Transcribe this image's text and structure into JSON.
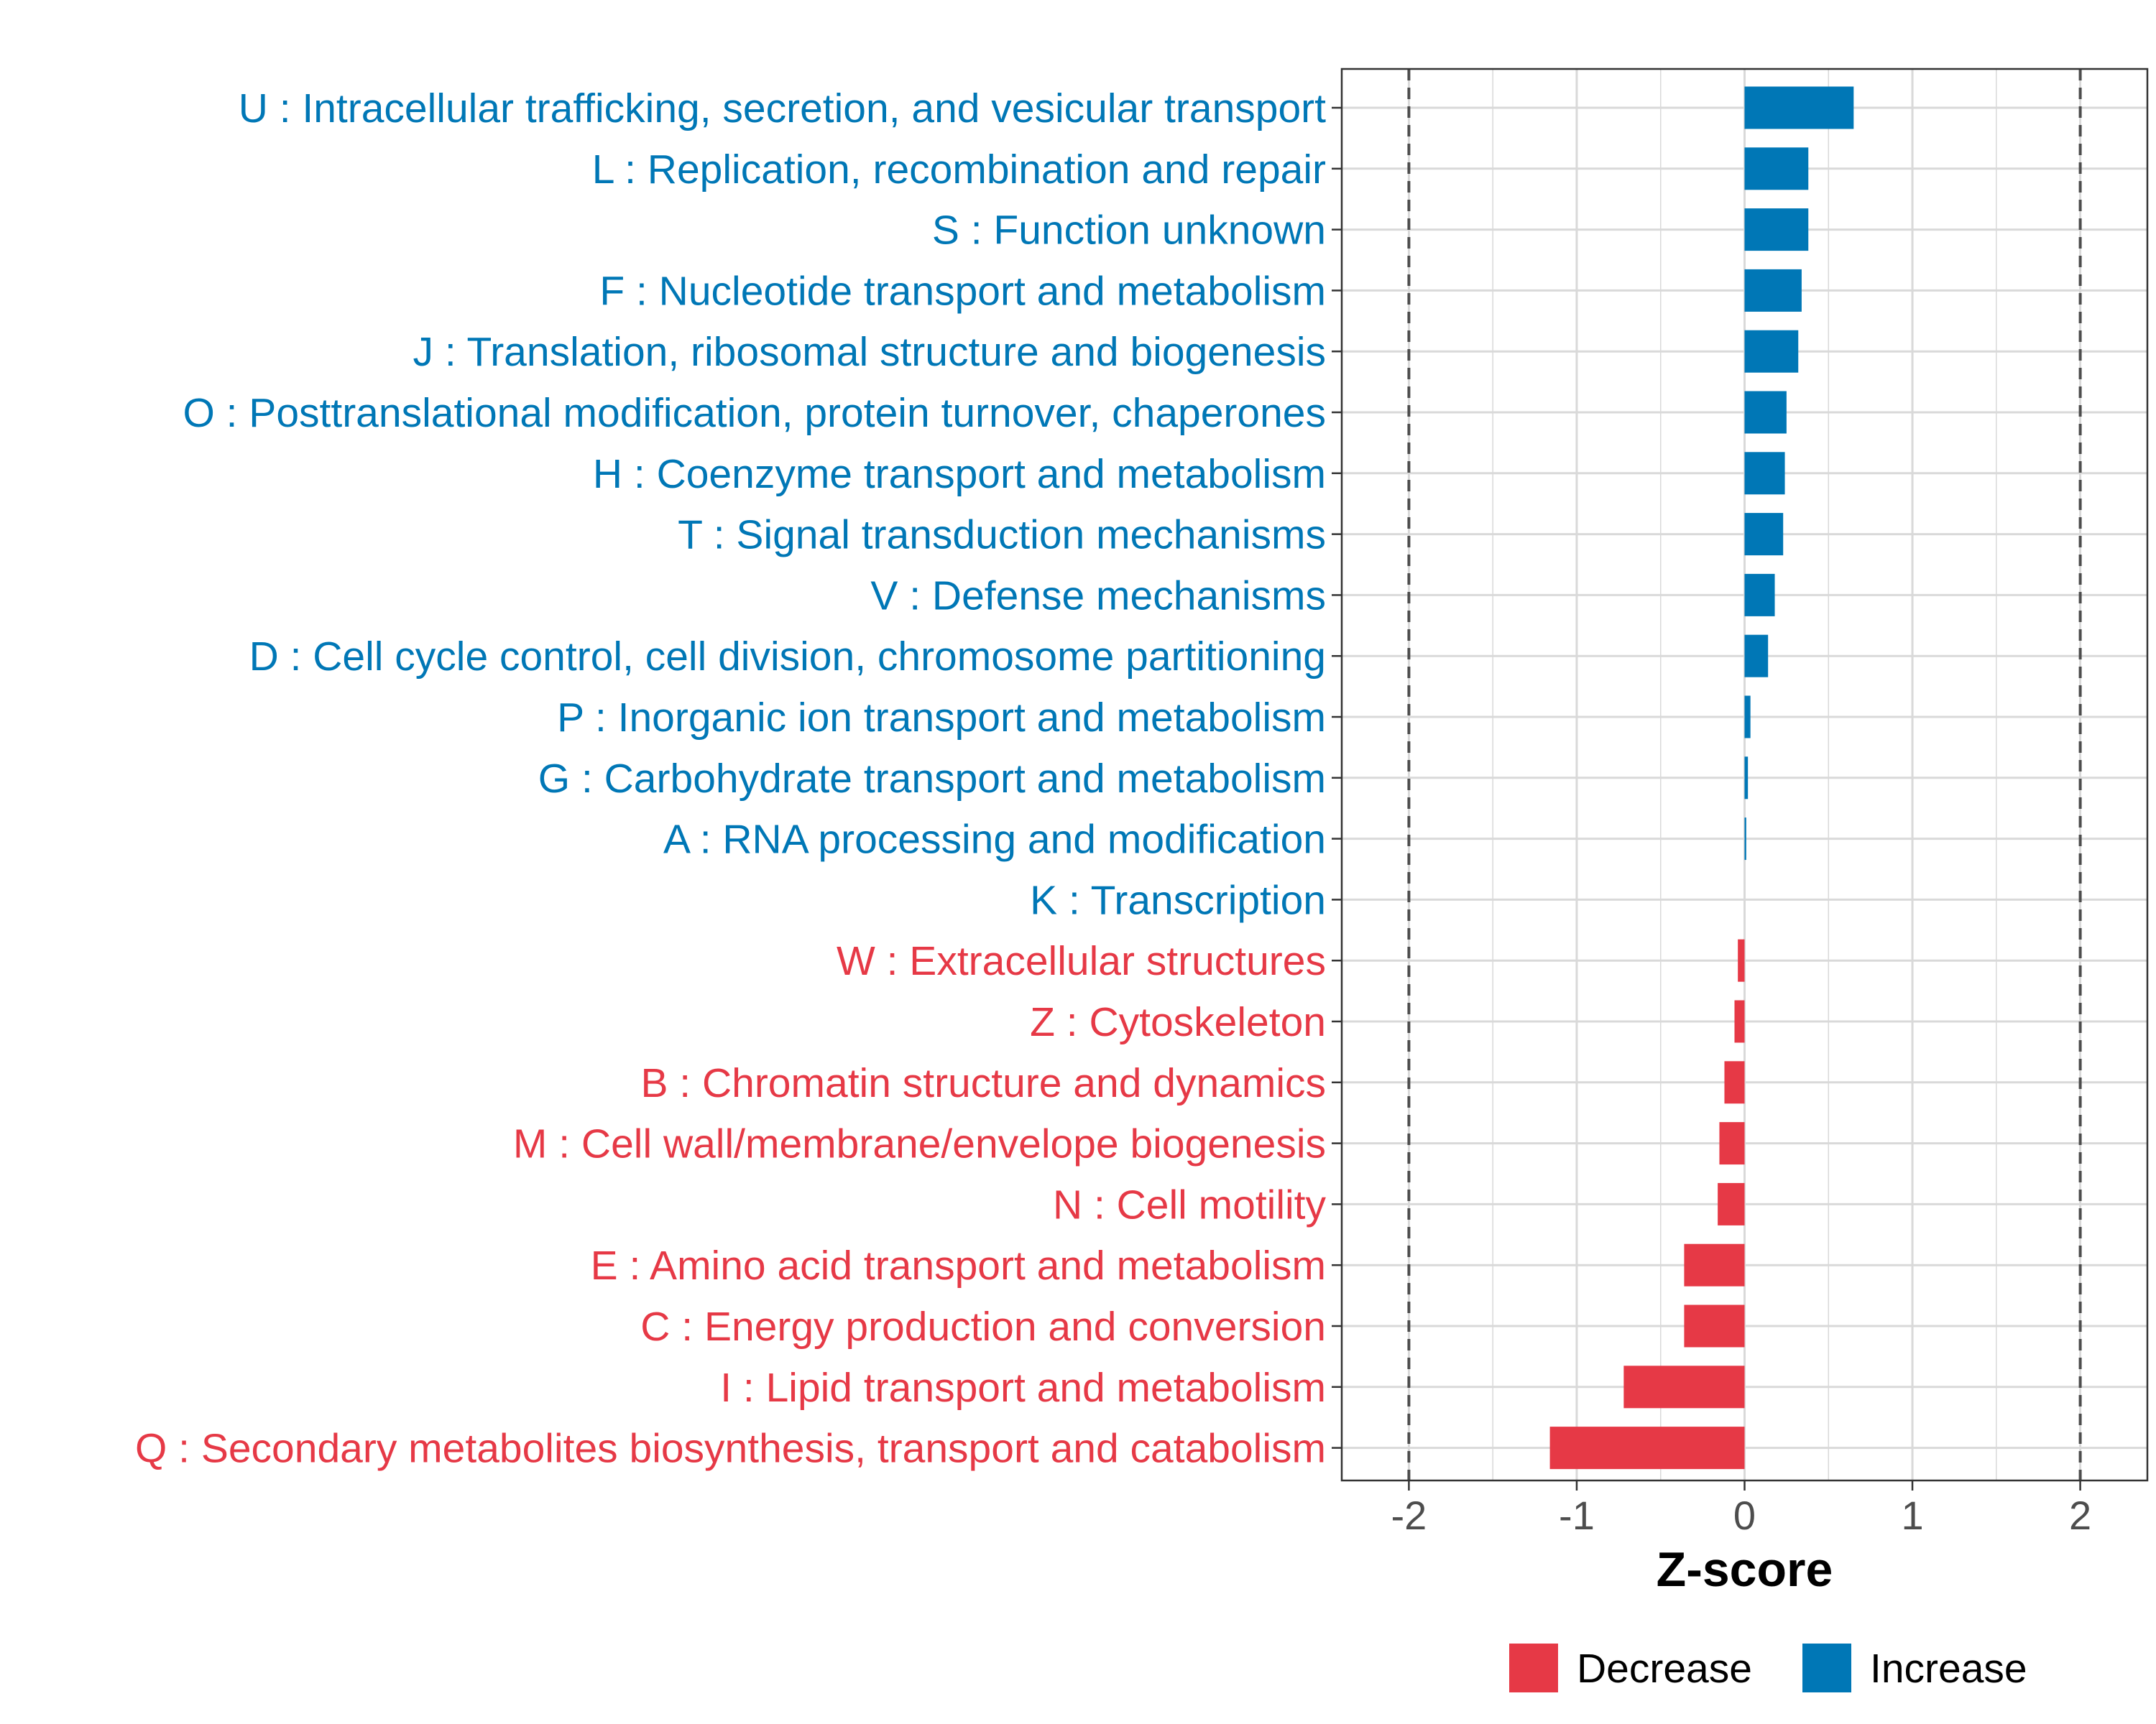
{
  "chart_data": {
    "type": "bar",
    "orientation": "horizontal",
    "xlabel": "Z-score",
    "xlim": [
      -2.4,
      2.4
    ],
    "x_ticks": [
      -2,
      -1,
      0,
      1,
      2
    ],
    "x_tick_labels": [
      "-2",
      "-1",
      "0",
      "1",
      "2"
    ],
    "reference_lines": [
      -2,
      2
    ],
    "grid": true,
    "legend": {
      "position": "bottom",
      "entries": [
        {
          "label": "Decrease",
          "color": "#e63946"
        },
        {
          "label": "Increase",
          "color": "#0077b6"
        }
      ]
    },
    "categories": [
      {
        "label": "U : Intracellular trafficking, secretion, and vesicular transport",
        "value": 0.65,
        "direction": "Increase"
      },
      {
        "label": "L : Replication, recombination and repair",
        "value": 0.38,
        "direction": "Increase"
      },
      {
        "label": "S : Function unknown",
        "value": 0.38,
        "direction": "Increase"
      },
      {
        "label": "F : Nucleotide transport and metabolism",
        "value": 0.34,
        "direction": "Increase"
      },
      {
        "label": "J : Translation, ribosomal structure and biogenesis",
        "value": 0.32,
        "direction": "Increase"
      },
      {
        "label": "O : Posttranslational modification, protein turnover, chaperones",
        "value": 0.25,
        "direction": "Increase"
      },
      {
        "label": "H : Coenzyme transport and metabolism",
        "value": 0.24,
        "direction": "Increase"
      },
      {
        "label": "T : Signal transduction mechanisms",
        "value": 0.23,
        "direction": "Increase"
      },
      {
        "label": "V : Defense mechanisms",
        "value": 0.18,
        "direction": "Increase"
      },
      {
        "label": "D : Cell cycle control, cell division, chromosome partitioning",
        "value": 0.14,
        "direction": "Increase"
      },
      {
        "label": "P : Inorganic ion transport and metabolism",
        "value": 0.035,
        "direction": "Increase"
      },
      {
        "label": "G : Carbohydrate transport and metabolism",
        "value": 0.02,
        "direction": "Increase"
      },
      {
        "label": "A : RNA processing and modification",
        "value": 0.01,
        "direction": "Increase"
      },
      {
        "label": "K : Transcription",
        "value": 0.0,
        "direction": "Increase"
      },
      {
        "label": "W : Extracellular structures",
        "value": -0.04,
        "direction": "Decrease"
      },
      {
        "label": "Z : Cytoskeleton",
        "value": -0.06,
        "direction": "Decrease"
      },
      {
        "label": "B : Chromatin structure and dynamics",
        "value": -0.12,
        "direction": "Decrease"
      },
      {
        "label": "M : Cell wall/membrane/envelope biogenesis",
        "value": -0.15,
        "direction": "Decrease"
      },
      {
        "label": "N : Cell motility",
        "value": -0.16,
        "direction": "Decrease"
      },
      {
        "label": "E : Amino acid transport and metabolism",
        "value": -0.36,
        "direction": "Decrease"
      },
      {
        "label": "C : Energy production and conversion",
        "value": -0.36,
        "direction": "Decrease"
      },
      {
        "label": "I : Lipid transport and metabolism",
        "value": -0.72,
        "direction": "Decrease"
      },
      {
        "label": "Q : Secondary metabolites biosynthesis, transport and catabolism",
        "value": -1.16,
        "direction": "Decrease"
      }
    ]
  },
  "colors": {
    "increase": "#0077b6",
    "decrease": "#e63946",
    "grid": "#d9d9d9",
    "panel_border": "#333333",
    "ref_line": "#4d4d4d"
  }
}
